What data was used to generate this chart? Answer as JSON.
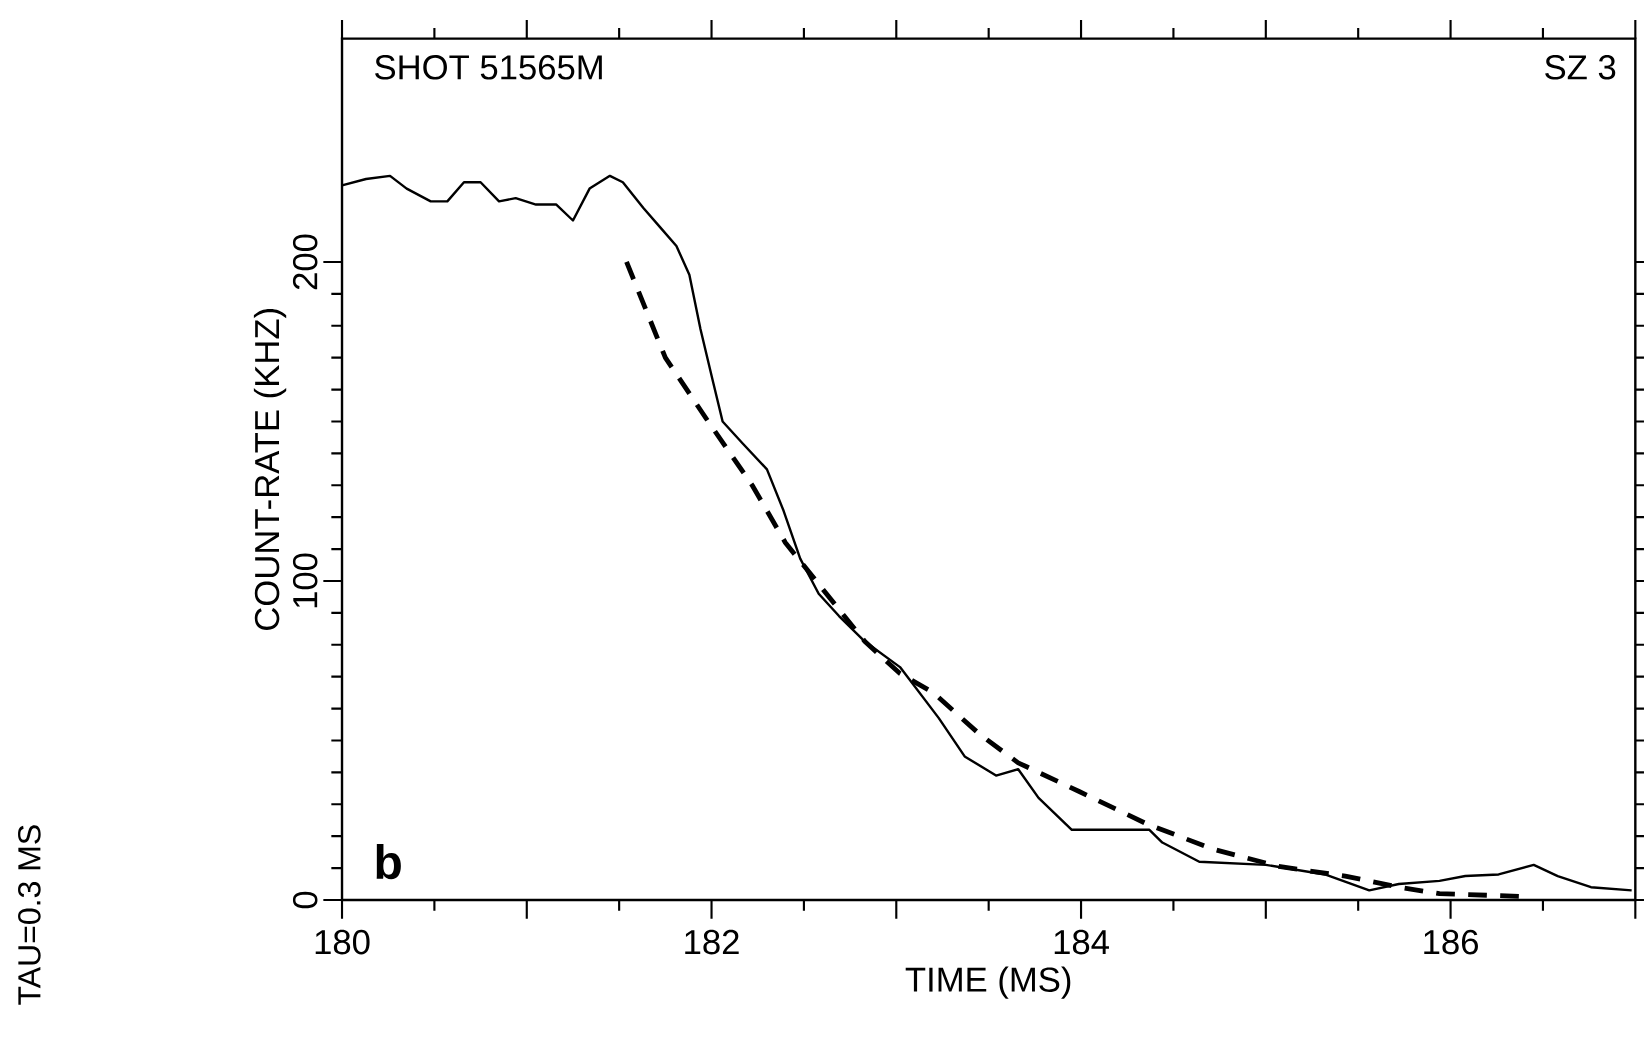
{
  "chart_data": {
    "type": "line",
    "title": "SHOT 51565M",
    "xlabel": "TIME (MS)",
    "ylabel": "COUNT-RATE (KHZ)",
    "annotations": [
      "SZ 3",
      "b",
      "TAU=0.3 MS"
    ],
    "xlim": [
      180,
      187
    ],
    "ylim": [
      0,
      270
    ],
    "xticks": [
      180,
      {
        "value": 181,
        "label": null
      },
      182,
      {
        "value": 183,
        "label": null
      },
      184,
      {
        "value": 185,
        "label": null
      },
      186,
      {
        "value": 187,
        "label": null
      }
    ],
    "yticks": [
      0,
      100,
      200
    ],
    "marker": "none",
    "series": [
      {
        "color": "#000000",
        "line_style": "solid",
        "x": [
          180.0,
          180.13,
          180.26,
          180.35,
          180.48,
          180.57,
          180.66,
          180.75,
          180.85,
          180.94,
          181.05,
          181.16,
          181.25,
          181.34,
          181.45,
          181.52,
          181.63,
          181.72,
          181.81,
          181.88,
          181.94,
          182.01,
          182.06,
          182.17,
          182.3,
          182.39,
          182.48,
          182.58,
          182.69,
          182.83,
          183.02,
          183.23,
          183.37,
          183.54,
          183.66,
          183.77,
          183.95,
          184.37,
          184.44,
          184.64,
          185.0,
          185.32,
          185.56,
          185.72,
          185.94,
          186.08,
          186.26,
          186.45,
          186.58,
          186.76,
          186.98
        ],
        "values": [
          224,
          226,
          227,
          223,
          219,
          219,
          225,
          225,
          219,
          220,
          218,
          218,
          213,
          223,
          227,
          225,
          217,
          211,
          205,
          196,
          179,
          162,
          150,
          143,
          135,
          122,
          107,
          96,
          89,
          81,
          73,
          57,
          45,
          39,
          41,
          32,
          22,
          22,
          18,
          12,
          11,
          8,
          3,
          5,
          6,
          7.5,
          8,
          11,
          7.5,
          4,
          3
        ]
      },
      {
        "color": "#000000",
        "line_style": "dashed",
        "x": [
          181.54,
          181.75,
          181.97,
          182.22,
          182.4,
          182.58,
          182.83,
          183.02,
          183.2,
          183.45,
          183.66,
          183.99,
          184.35,
          184.71,
          185.07,
          185.43,
          185.72,
          185.94,
          186.44
        ],
        "values": [
          200,
          170,
          151,
          130,
          112,
          99,
          81,
          71,
          65,
          52,
          43,
          34,
          24,
          16,
          10.5,
          7.5,
          4,
          2,
          1
        ]
      }
    ]
  }
}
